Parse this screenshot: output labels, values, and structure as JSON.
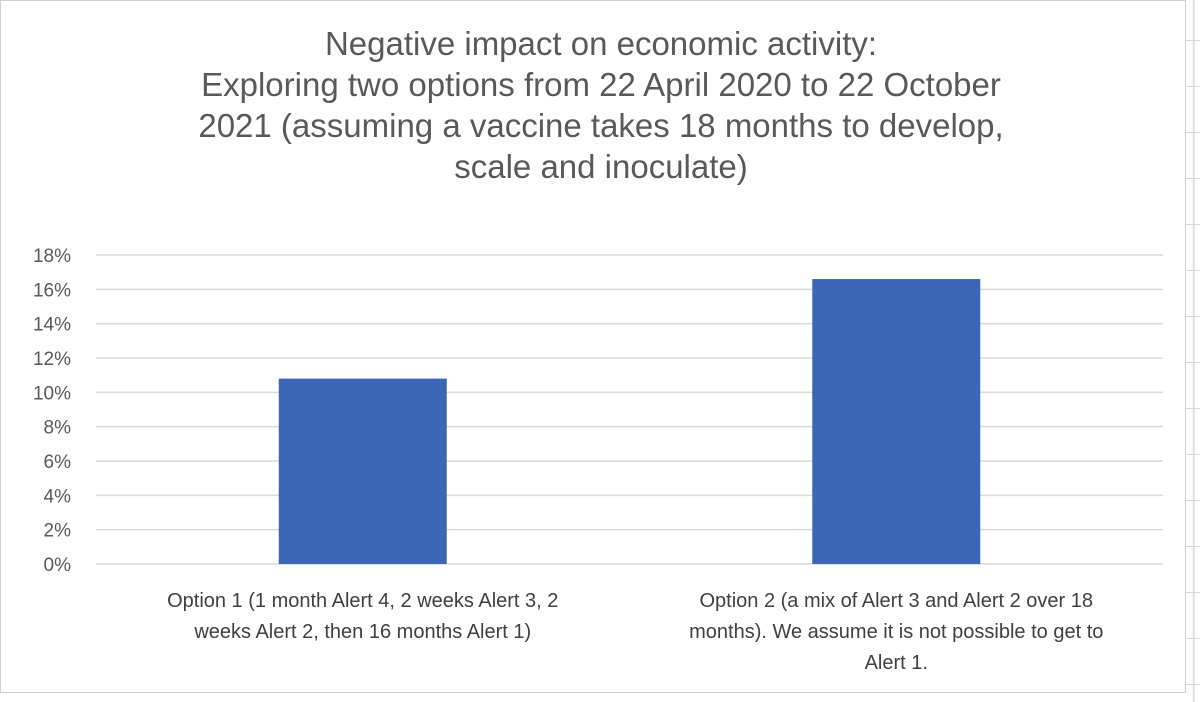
{
  "chart_data": {
    "type": "bar",
    "title_lines": [
      "Negative impact on economic activity:",
      "Exploring two options from 22 April 2020 to 22 October",
      "2021 (assuming a vaccine takes 18 months to develop,",
      "scale and inoculate)"
    ],
    "categories": [
      [
        "Option 1 (1 month Alert 4, 2 weeks Alert 3, 2",
        "weeks Alert 2, then 16 months Alert 1)"
      ],
      [
        "Option 2 (a mix of Alert 3 and Alert 2 over 18",
        "months). We assume it is not possible to get to",
        "Alert 1."
      ]
    ],
    "values": [
      10.8,
      16.6
    ],
    "value_format": "percent",
    "ylim": [
      0,
      18
    ],
    "yticks": [
      "0%",
      "2%",
      "4%",
      "6%",
      "8%",
      "10%",
      "12%",
      "14%",
      "16%",
      "18%"
    ],
    "grid": true,
    "legend": "none",
    "bar_color": "#3b67b6",
    "grid_color": "#d9d9d9"
  }
}
